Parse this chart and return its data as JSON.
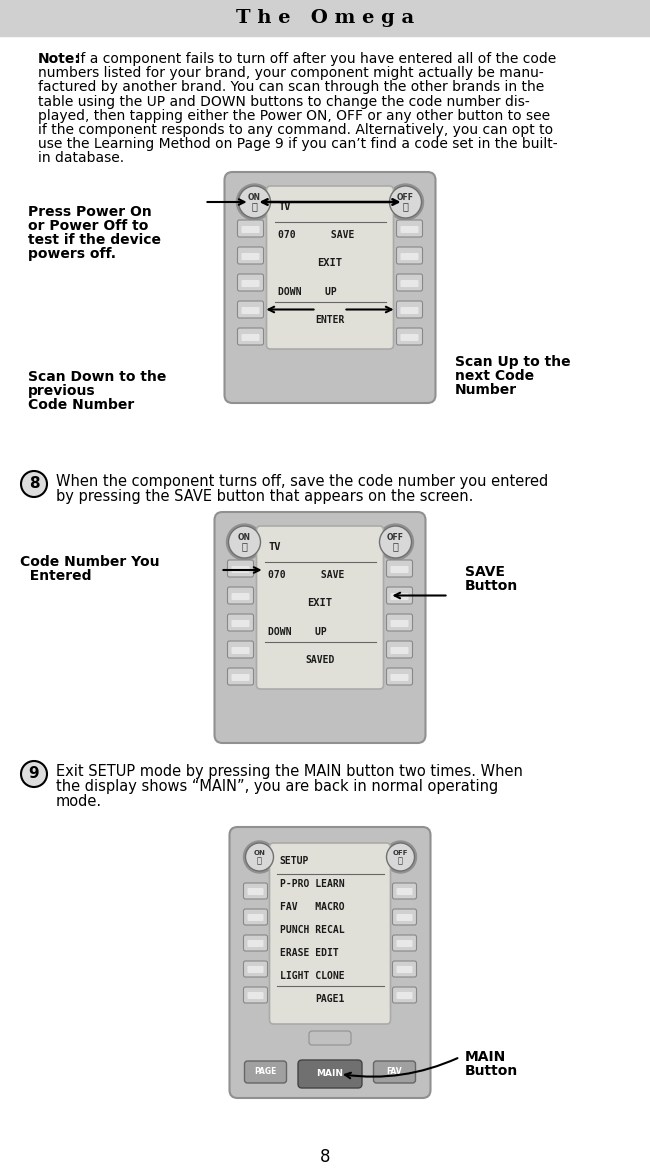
{
  "title": "T h e   O m e g a",
  "title_bg": "#d0d0d0",
  "page_bg": "#ffffff",
  "page_number": "8",
  "note_lines": [
    [
      "bold",
      "Note:",
      " If a component fails to turn off after you have entered all of the code"
    ],
    [
      "",
      "",
      "numbers listed for your brand, your component might actually be manu-"
    ],
    [
      "",
      "",
      "factured by another brand. You can scan through the other brands in the"
    ],
    [
      "",
      "",
      "table using the UP and DOWN buttons to change the code number dis-"
    ],
    [
      "",
      "",
      "played, then tapping either the Power ON, OFF or any other button to see"
    ],
    [
      "",
      "",
      "if the component responds to any command. Alternatively, you can opt to"
    ],
    [
      "",
      "",
      "use the Learning Method on Page 9 if you can’t find a code set in the built-"
    ],
    [
      "",
      "",
      "in database."
    ]
  ],
  "step8_text_line1": "When the component turns off, save the code number you entered",
  "step8_text_line2": "by pressing the SAVE button that appears on the screen.",
  "step9_text_line1": "Exit SETUP mode by pressing the MAIN button two times. When",
  "step9_text_line2": "the display shows “MAIN”, you are back in normal operating",
  "step9_text_line3": "mode.",
  "label_press_power": [
    "Press Power On",
    "or Power Off to",
    "test if the device",
    "powers off."
  ],
  "label_scan_down": [
    "Scan Down to the",
    "previous",
    "Code Number"
  ],
  "label_scan_up": [
    "Scan Up to the",
    "next Code",
    "Number"
  ],
  "label_code_number": [
    "Code Number You",
    "  Entered"
  ],
  "label_save": [
    "SAVE",
    "Button"
  ],
  "label_main": [
    "MAIN",
    "Button"
  ],
  "remote1_screen": [
    "TV",
    "070      SAVE",
    "EXIT",
    "DOWN    UP",
    "ENTER"
  ],
  "remote2_screen": [
    "TV",
    "070      SAVE",
    "EXIT",
    "DOWN    UP",
    "SAVED"
  ],
  "remote3_screen": [
    "SETUP",
    "P-PRO LEARN",
    "FAV   MACRO",
    "PUNCH RECAL",
    "ERASE EDIT",
    "LIGHT CLONE",
    "PAGE1"
  ]
}
